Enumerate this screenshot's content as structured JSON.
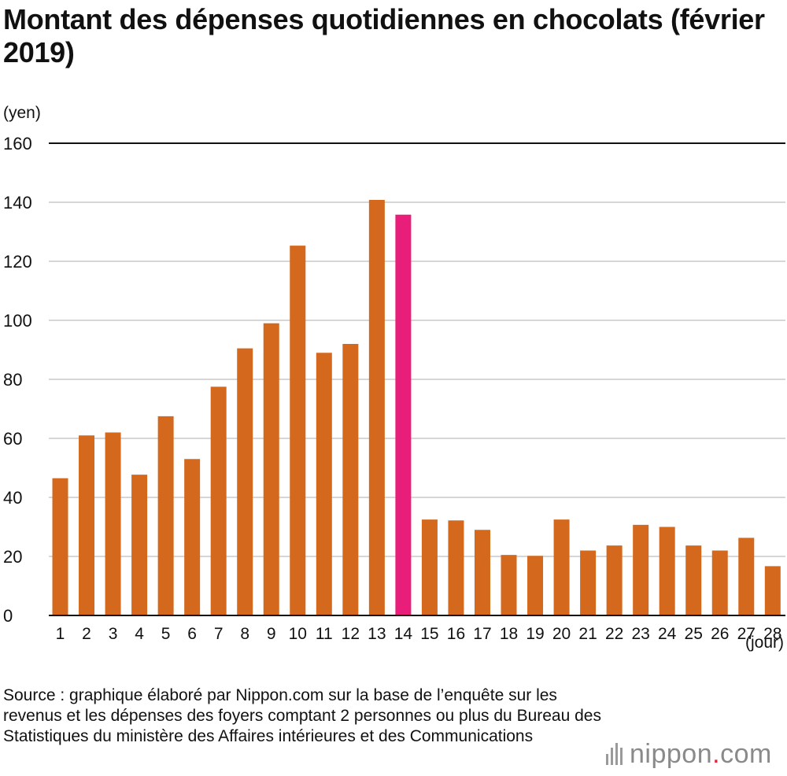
{
  "chart_data": {
    "type": "bar",
    "title": "Montant des dépenses quotidiennes en chocolats (février 2019)",
    "ylabel": "(yen)",
    "xlabel": "(jour)",
    "ylim": [
      0,
      160
    ],
    "yticks": [
      0,
      20,
      40,
      60,
      80,
      100,
      120,
      140,
      160
    ],
    "categories": [
      "1",
      "2",
      "3",
      "4",
      "5",
      "6",
      "7",
      "8",
      "9",
      "10",
      "11",
      "12",
      "13",
      "14",
      "15",
      "16",
      "17",
      "18",
      "19",
      "20",
      "21",
      "22",
      "23",
      "24",
      "25",
      "26",
      "27",
      "28"
    ],
    "values": [
      46.5,
      61,
      62,
      47.7,
      67.5,
      53,
      77.5,
      90.5,
      99,
      125.3,
      89,
      92,
      140.8,
      135.8,
      32.5,
      32.2,
      29,
      20.5,
      20.2,
      32.5,
      22,
      23.7,
      30.7,
      30,
      23.7,
      22,
      26.3,
      16.7
    ],
    "highlight_index": 13,
    "colors": {
      "bar": "#d4691e",
      "highlight": "#e91e7a",
      "grid": "#c8c8c8",
      "axis": "#111111"
    },
    "gridlines": true,
    "legend": "none"
  },
  "source": "Source : graphique élaboré par Nippon.com sur la base de l’enquête sur les revenus et les dépenses des foyers comptant 2 personnes ou plus du Bureau des Statistiques du ministère des Affaires intérieures et des Communications",
  "brand": {
    "name": "nippon",
    "dot": ".",
    "suffix": "com",
    "icon": "nippon-bars-icon"
  }
}
